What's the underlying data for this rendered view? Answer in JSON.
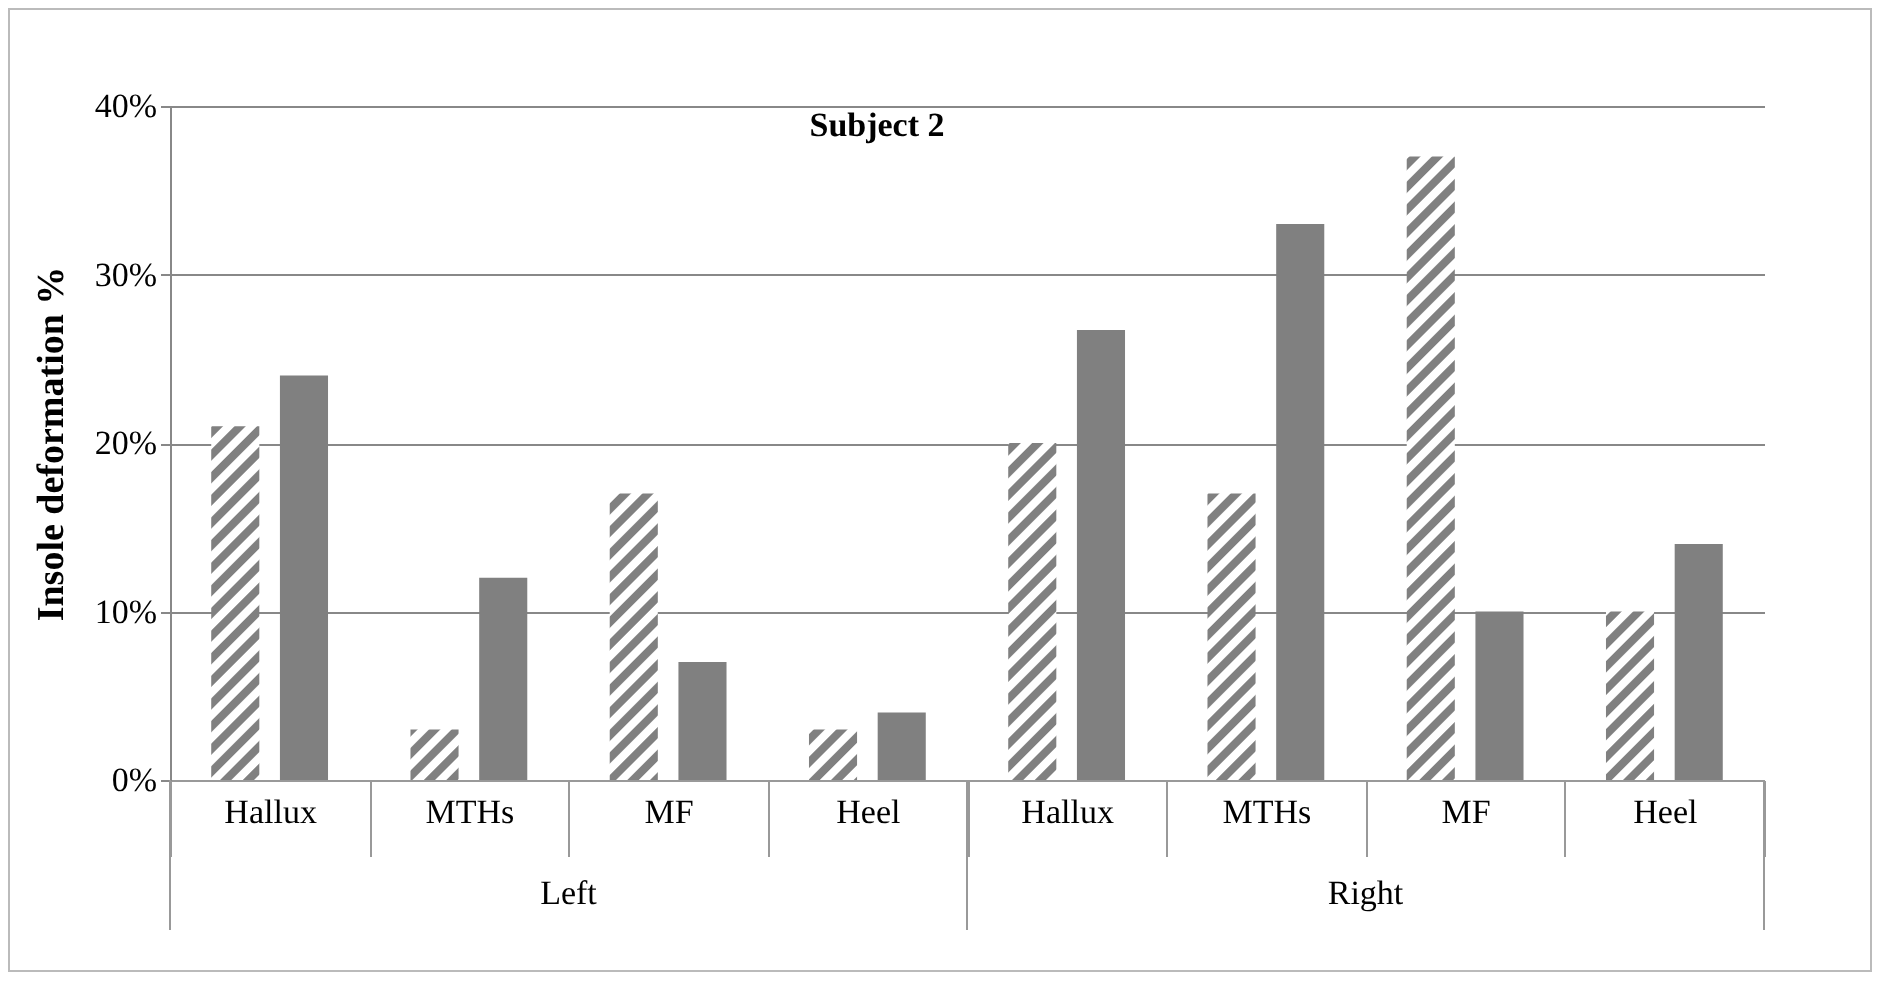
{
  "chart_data": {
    "type": "bar",
    "title": "Subject 2",
    "ylabel": "Insole deformation %",
    "categories": [
      "Hallux",
      "MTHs",
      "MF",
      "Heel",
      "Hallux",
      "MTHs",
      "MF",
      "Heel"
    ],
    "annotations": [
      "Left",
      "Right"
    ],
    "series": [
      {
        "color": "#808080",
        "values": [
          21,
          3,
          17,
          3,
          20,
          17,
          37,
          10
        ]
      },
      {
        "color": "#808080",
        "values": [
          24,
          12,
          7,
          4,
          26.7,
          33,
          10,
          14
        ]
      }
    ],
    "ylim": [
      0,
      40
    ],
    "yticks": [
      {
        "value": 0,
        "label": "0%"
      },
      {
        "value": 10,
        "label": "10%"
      },
      {
        "value": 20,
        "label": "20%"
      },
      {
        "value": 30,
        "label": "30%"
      },
      {
        "value": 40,
        "label": "40%"
      }
    ],
    "grid": "y",
    "legend": false
  }
}
